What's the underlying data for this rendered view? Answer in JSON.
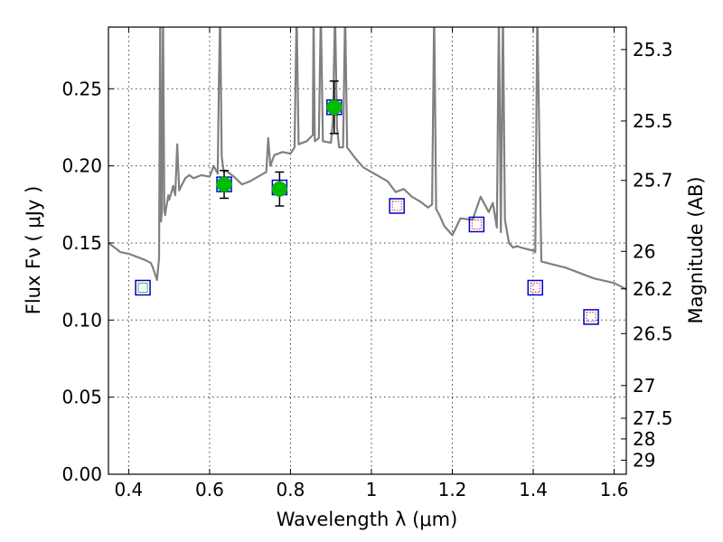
{
  "chart_data": {
    "type": "scatter",
    "title": "",
    "xlabel": "Wavelength  λ (μm)",
    "ylabel": "Flux  Fν  ( μJy )",
    "y2label": "Magnitude (AB)",
    "xlim": [
      0.35,
      1.63
    ],
    "ylim": [
      0.0,
      0.29
    ],
    "grid": true,
    "x_ticks": [
      0.4,
      0.6,
      0.8,
      1.0,
      1.2,
      1.4,
      1.6
    ],
    "x_tick_labels": [
      "0.4",
      "0.6",
      "0.8",
      "1",
      "1.2",
      "1.4",
      "1.6"
    ],
    "y_ticks": [
      0.0,
      0.05,
      0.1,
      0.15,
      0.2,
      0.25
    ],
    "y_tick_labels": [
      "0.00",
      "0.05",
      "0.10",
      "0.15",
      "0.20",
      "0.25"
    ],
    "y2_ticks": [
      25.3,
      25.5,
      25.7,
      26.0,
      26.2,
      26.5,
      27.0,
      27.5,
      28.0,
      29.0
    ],
    "y2_tick_labels": [
      "25.3",
      "25.5",
      "25.7",
      "26",
      "26.2",
      "26.5",
      "27",
      "27.5",
      "28",
      "29"
    ],
    "colors": {
      "model_line": "#808080",
      "observed_fill": "#00bb00",
      "errorbar": "#000000",
      "box_edge": "#0000cc",
      "inner_upper": "#dd2222",
      "inner_lower": "#44bb44"
    },
    "series": [
      {
        "kind": "model_spectrum",
        "x": [
          0.35,
          0.36,
          0.37,
          0.38,
          0.4,
          0.42,
          0.44,
          0.455,
          0.46,
          0.465,
          0.47,
          0.475,
          0.478,
          0.48,
          0.482,
          0.485,
          0.488,
          0.49,
          0.492,
          0.495,
          0.498,
          0.5,
          0.505,
          0.51,
          0.515,
          0.52,
          0.525,
          0.53,
          0.54,
          0.55,
          0.56,
          0.58,
          0.6,
          0.61,
          0.62,
          0.623,
          0.626,
          0.63,
          0.635,
          0.64,
          0.66,
          0.68,
          0.7,
          0.72,
          0.74,
          0.745,
          0.75,
          0.76,
          0.78,
          0.8,
          0.81,
          0.815,
          0.82,
          0.84,
          0.855,
          0.857,
          0.86,
          0.87,
          0.875,
          0.88,
          0.9,
          0.905,
          0.91,
          0.915,
          0.92,
          0.93,
          0.935,
          0.94,
          0.96,
          0.98,
          1.0,
          1.02,
          1.04,
          1.06,
          1.08,
          1.1,
          1.12,
          1.14,
          1.15,
          1.155,
          1.16,
          1.17,
          1.18,
          1.2,
          1.22,
          1.25,
          1.27,
          1.29,
          1.3,
          1.31,
          1.315,
          1.32,
          1.325,
          1.33,
          1.34,
          1.35,
          1.36,
          1.37,
          1.4,
          1.405,
          1.41,
          1.42,
          1.45,
          1.48,
          1.5,
          1.55,
          1.6,
          1.63
        ],
        "y": [
          0.15,
          0.148,
          0.146,
          0.144,
          0.143,
          0.141,
          0.139,
          0.137,
          0.134,
          0.13,
          0.126,
          0.14,
          0.3,
          0.164,
          0.17,
          0.3,
          0.172,
          0.168,
          0.172,
          0.176,
          0.181,
          0.178,
          0.182,
          0.187,
          0.181,
          0.214,
          0.184,
          0.187,
          0.192,
          0.194,
          0.192,
          0.194,
          0.193,
          0.2,
          0.195,
          0.254,
          0.3,
          0.206,
          0.196,
          0.197,
          0.193,
          0.188,
          0.19,
          0.193,
          0.196,
          0.218,
          0.2,
          0.207,
          0.209,
          0.208,
          0.212,
          0.3,
          0.214,
          0.216,
          0.22,
          0.3,
          0.216,
          0.218,
          0.3,
          0.216,
          0.215,
          0.23,
          0.3,
          0.225,
          0.212,
          0.212,
          0.3,
          0.212,
          0.205,
          0.199,
          0.196,
          0.193,
          0.19,
          0.183,
          0.185,
          0.18,
          0.177,
          0.173,
          0.175,
          0.3,
          0.172,
          0.167,
          0.161,
          0.155,
          0.166,
          0.165,
          0.18,
          0.17,
          0.176,
          0.16,
          0.3,
          0.157,
          0.3,
          0.165,
          0.15,
          0.147,
          0.148,
          0.147,
          0.145,
          0.144,
          0.3,
          0.138,
          0.136,
          0.134,
          0.132,
          0.127,
          0.124,
          0.12
        ]
      },
      {
        "kind": "observed",
        "name": "",
        "x": [
          0.636,
          0.773,
          0.908
        ],
        "y": [
          0.188,
          0.185,
          0.238
        ],
        "yerr": [
          0.009,
          0.011,
          0.017
        ]
      },
      {
        "kind": "synthetic_boxes",
        "x": [
          0.435,
          0.636,
          0.773,
          0.908,
          1.063,
          1.26,
          1.405,
          1.543
        ],
        "y": [
          0.121,
          0.188,
          0.186,
          0.238,
          0.174,
          0.162,
          0.121,
          0.102
        ],
        "inner": [
          "lower",
          "none",
          "none",
          "none",
          "upper",
          "upper",
          "upper",
          "upper"
        ]
      }
    ]
  }
}
